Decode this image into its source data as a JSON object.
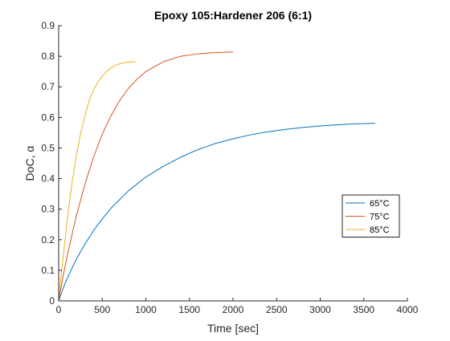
{
  "chart_data": {
    "type": "line",
    "title": "Epoxy 105:Hardener 206 (6:1)",
    "xlabel": "Time [sec]",
    "ylabel": "DoC, α",
    "xlim": [
      0,
      4000
    ],
    "ylim": [
      0,
      0.9
    ],
    "xticks": [
      0,
      500,
      1000,
      1500,
      2000,
      2500,
      3000,
      3500,
      4000
    ],
    "yticks": [
      0,
      0.1,
      0.2,
      0.3,
      0.4,
      0.5,
      0.6,
      0.7,
      0.8,
      0.9
    ],
    "xtick_labels": [
      "0",
      "500",
      "1000",
      "1500",
      "2000",
      "2500",
      "3000",
      "3500",
      "4000"
    ],
    "ytick_labels": [
      "0",
      "0.1",
      "0.2",
      "0.3",
      "0.4",
      "0.5",
      "0.6",
      "0.7",
      "0.8",
      "0.9"
    ],
    "grid": false,
    "legend_position": "right, lower-middle",
    "series": [
      {
        "name": "65°C",
        "color": "#0072BD",
        "x": [
          0,
          50,
          100,
          200,
          300,
          400,
          500,
          600,
          800,
          1000,
          1200,
          1400,
          1600,
          1800,
          2000,
          2200,
          2400,
          2600,
          2800,
          3000,
          3200,
          3400,
          3630
        ],
        "y": [
          0,
          0.04,
          0.075,
          0.135,
          0.185,
          0.23,
          0.268,
          0.303,
          0.36,
          0.405,
          0.44,
          0.47,
          0.495,
          0.515,
          0.53,
          0.543,
          0.553,
          0.561,
          0.567,
          0.572,
          0.576,
          0.579,
          0.581
        ]
      },
      {
        "name": "75°C",
        "color": "#D95319",
        "x": [
          0,
          50,
          100,
          200,
          300,
          400,
          500,
          600,
          700,
          800,
          900,
          1000,
          1200,
          1400,
          1600,
          1800,
          2000
        ],
        "y": [
          0,
          0.08,
          0.15,
          0.275,
          0.38,
          0.47,
          0.545,
          0.605,
          0.655,
          0.695,
          0.725,
          0.75,
          0.782,
          0.8,
          0.808,
          0.812,
          0.814
        ]
      },
      {
        "name": "85°C",
        "color": "#EDB120",
        "x": [
          0,
          25,
          50,
          100,
          150,
          200,
          250,
          300,
          350,
          400,
          450,
          500,
          550,
          600,
          650,
          700,
          750,
          800,
          880
        ],
        "y": [
          0,
          0.07,
          0.14,
          0.27,
          0.38,
          0.47,
          0.545,
          0.605,
          0.655,
          0.69,
          0.715,
          0.735,
          0.75,
          0.762,
          0.77,
          0.775,
          0.779,
          0.781,
          0.783
        ]
      }
    ]
  }
}
